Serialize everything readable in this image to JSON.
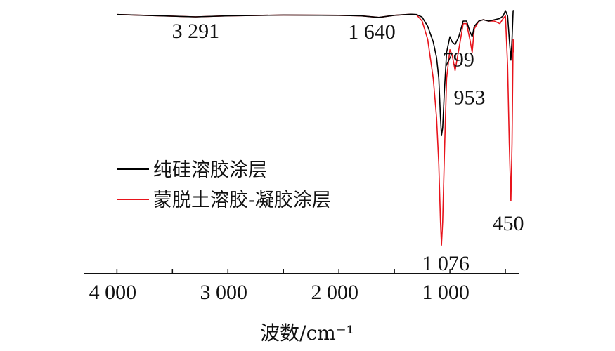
{
  "chart_data": {
    "type": "line",
    "title": "",
    "xlabel": "波数/cm⁻¹",
    "ylabel": "",
    "xlim": [
      4300,
      380
    ],
    "x_reversed": true,
    "ylim": [
      0,
      104
    ],
    "grid": false,
    "x_ticks": [
      4000,
      3500,
      3000,
      2500,
      2000,
      1500,
      1000,
      500
    ],
    "x_tick_labels": [
      "4 000",
      "",
      "3 000",
      "",
      "2 000",
      "",
      "1 000",
      ""
    ],
    "legend_placement": "center-left",
    "series": [
      {
        "name": "纯硅溶胶涂层",
        "color": "#000000",
        "x": [
          4000,
          3600,
          3291,
          3000,
          2500,
          2000,
          1800,
          1640,
          1500,
          1350,
          1300,
          1250,
          1200,
          1150,
          1120,
          1100,
          1085,
          1076,
          1065,
          1050,
          1030,
          1000,
          980,
          953,
          920,
          880,
          850,
          820,
          799,
          780,
          740,
          700,
          650,
          600,
          550,
          520,
          500,
          480,
          465,
          450,
          440,
          430,
          420
        ],
        "y": [
          99.5,
          99,
          98.6,
          99,
          99.3,
          99.2,
          99,
          98.4,
          99.2,
          99.6,
          99.5,
          98.5,
          95,
          89,
          83,
          75,
          60,
          53,
          56,
          70,
          85,
          91,
          89,
          88,
          91,
          97,
          97,
          93,
          91,
          95,
          97,
          97.5,
          97,
          97.5,
          98,
          99,
          101,
          99,
          90,
          82,
          90,
          101,
          101
        ]
      },
      {
        "name": "蒙脱土溶胶-凝胶涂层",
        "color": "#e8141c",
        "x": [
          4000,
          3600,
          3291,
          3000,
          2500,
          2000,
          1800,
          1640,
          1500,
          1350,
          1300,
          1250,
          1200,
          1150,
          1120,
          1100,
          1085,
          1076,
          1065,
          1050,
          1030,
          1000,
          980,
          953,
          920,
          880,
          850,
          820,
          799,
          780,
          740,
          700,
          650,
          600,
          550,
          520,
          500,
          480,
          465,
          450,
          440,
          430,
          425
        ],
        "y": [
          99.5,
          99,
          98.6,
          99,
          99.3,
          99.2,
          99,
          98.4,
          99.2,
          99.6,
          99.4,
          97,
          90,
          75,
          60,
          42,
          20,
          11,
          20,
          45,
          75,
          86,
          84,
          78,
          86,
          96,
          96,
          90,
          85,
          94,
          97,
          97.5,
          97,
          97,
          96,
          98,
          99,
          80,
          50,
          28,
          50,
          90,
          85
        ]
      }
    ],
    "annotations": [
      {
        "text": "3 291",
        "x": 3291,
        "y": 98.6
      },
      {
        "text": "1 640",
        "x": 1640,
        "y": 98.4
      },
      {
        "text": "1 076",
        "x": 1076,
        "y": 11
      },
      {
        "text": "953",
        "x": 953,
        "y": 78
      },
      {
        "text": "799",
        "x": 799,
        "y": 85
      },
      {
        "text": "450",
        "x": 450,
        "y": 28
      }
    ]
  }
}
